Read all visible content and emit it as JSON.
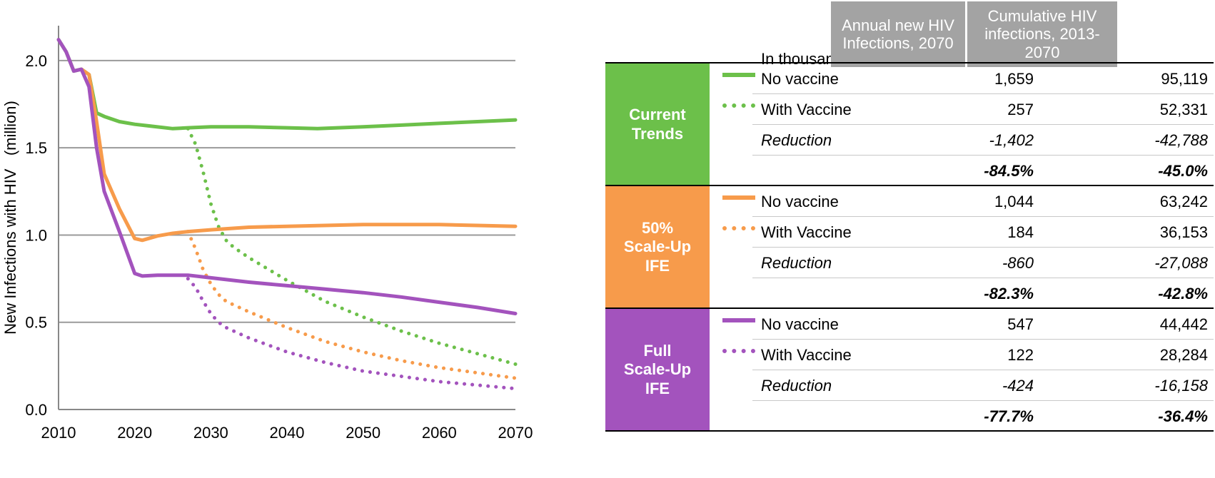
{
  "chart_data": {
    "type": "line",
    "xlabel": "",
    "ylabel": "New Infections with HIV   (million)",
    "xlim": [
      2010,
      2070
    ],
    "ylim": [
      0,
      2.2
    ],
    "xticks": [
      "2010",
      "2020",
      "2030",
      "2040",
      "2050",
      "2060",
      "2070"
    ],
    "yticks": [
      "0.0",
      "0.5",
      "1.0",
      "1.5",
      "2.0"
    ],
    "grid": true,
    "series": [
      {
        "key": "ct_novax",
        "color": "#6cc04a",
        "style": "solid",
        "x": [
          2010,
          2011,
          2012,
          2013,
          2014,
          2015,
          2016,
          2018,
          2020,
          2022,
          2025,
          2027,
          2030,
          2035,
          2040,
          2044,
          2050,
          2055,
          2060,
          2065,
          2070
        ],
        "y": [
          2.12,
          2.05,
          1.94,
          1.95,
          1.92,
          1.7,
          1.68,
          1.65,
          1.635,
          1.625,
          1.61,
          1.615,
          1.62,
          1.62,
          1.615,
          1.61,
          1.62,
          1.63,
          1.64,
          1.65,
          1.66
        ]
      },
      {
        "key": "ct_vax",
        "color": "#6cc04a",
        "style": "dotted",
        "x": [
          2027,
          2028,
          2029,
          2030,
          2031,
          2032,
          2033,
          2035,
          2040,
          2045,
          2050,
          2055,
          2060,
          2065,
          2070
        ],
        "y": [
          1.61,
          1.52,
          1.36,
          1.18,
          1.05,
          0.97,
          0.93,
          0.87,
          0.74,
          0.62,
          0.53,
          0.45,
          0.38,
          0.32,
          0.26
        ]
      },
      {
        "key": "half_novax",
        "color": "#f79b4b",
        "style": "solid",
        "x": [
          2013,
          2014,
          2015,
          2016,
          2018,
          2020,
          2021,
          2023,
          2025,
          2027,
          2030,
          2035,
          2040,
          2050,
          2055,
          2060,
          2065,
          2070
        ],
        "y": [
          1.95,
          1.92,
          1.65,
          1.35,
          1.15,
          0.98,
          0.97,
          0.995,
          1.01,
          1.02,
          1.03,
          1.045,
          1.05,
          1.06,
          1.06,
          1.06,
          1.055,
          1.05
        ]
      },
      {
        "key": "half_vax",
        "color": "#f79b4b",
        "style": "dotted",
        "x": [
          2027,
          2028,
          2029,
          2030,
          2031,
          2032,
          2033,
          2035,
          2040,
          2045,
          2050,
          2055,
          2060,
          2065,
          2070
        ],
        "y": [
          1.02,
          0.92,
          0.8,
          0.72,
          0.66,
          0.62,
          0.6,
          0.56,
          0.47,
          0.39,
          0.33,
          0.28,
          0.24,
          0.21,
          0.18
        ]
      },
      {
        "key": "full_novax",
        "color": "#a353bd",
        "style": "solid",
        "x": [
          2010,
          2011,
          2012,
          2013,
          2014,
          2015,
          2016,
          2018,
          2020,
          2021,
          2023,
          2025,
          2027,
          2030,
          2035,
          2040,
          2045,
          2050,
          2055,
          2060,
          2065,
          2070
        ],
        "y": [
          2.12,
          2.05,
          1.94,
          1.95,
          1.85,
          1.5,
          1.25,
          1.02,
          0.78,
          0.765,
          0.77,
          0.77,
          0.77,
          0.755,
          0.73,
          0.71,
          0.69,
          0.67,
          0.645,
          0.615,
          0.585,
          0.55
        ]
      },
      {
        "key": "full_vax",
        "color": "#a353bd",
        "style": "dotted",
        "x": [
          2027,
          2028,
          2029,
          2030,
          2031,
          2032,
          2033,
          2035,
          2040,
          2045,
          2050,
          2055,
          2060,
          2065,
          2070
        ],
        "y": [
          0.75,
          0.7,
          0.62,
          0.55,
          0.5,
          0.47,
          0.45,
          0.41,
          0.33,
          0.27,
          0.22,
          0.19,
          0.16,
          0.14,
          0.12
        ]
      }
    ]
  },
  "table": {
    "unit_label": "In thousand",
    "col1_header": "Annual new HIV Infections, 2070",
    "col2_header": "Cumulative HIV infections, 2013-2070",
    "groups": [
      {
        "name": "Current Trends",
        "color": "#6cc04a",
        "rows": [
          {
            "label": "No vaccine",
            "v1": "1,659",
            "v2": "95,119"
          },
          {
            "label": "With Vaccine",
            "v1": "257",
            "v2": "52,331"
          },
          {
            "label": "Reduction",
            "v1": "-1,402",
            "v2": "-42,788"
          },
          {
            "label": "",
            "v1": "-84.5%",
            "v2": "-45.0%"
          }
        ]
      },
      {
        "name": "50% Scale-Up IFE",
        "color": "#f79b4b",
        "rows": [
          {
            "label": "No vaccine",
            "v1": "1,044",
            "v2": "63,242"
          },
          {
            "label": "With Vaccine",
            "v1": "184",
            "v2": "36,153"
          },
          {
            "label": "Reduction",
            "v1": "-860",
            "v2": "-27,088"
          },
          {
            "label": "",
            "v1": "-82.3%",
            "v2": "-42.8%"
          }
        ]
      },
      {
        "name": "Full Scale-Up IFE",
        "color": "#a353bd",
        "rows": [
          {
            "label": "No vaccine",
            "v1": "547",
            "v2": "44,442"
          },
          {
            "label": "With Vaccine",
            "v1": "122",
            "v2": "28,284"
          },
          {
            "label": "Reduction",
            "v1": "-424",
            "v2": "-16,158"
          },
          {
            "label": "",
            "v1": "-77.7%",
            "v2": "-36.4%"
          }
        ]
      }
    ]
  }
}
